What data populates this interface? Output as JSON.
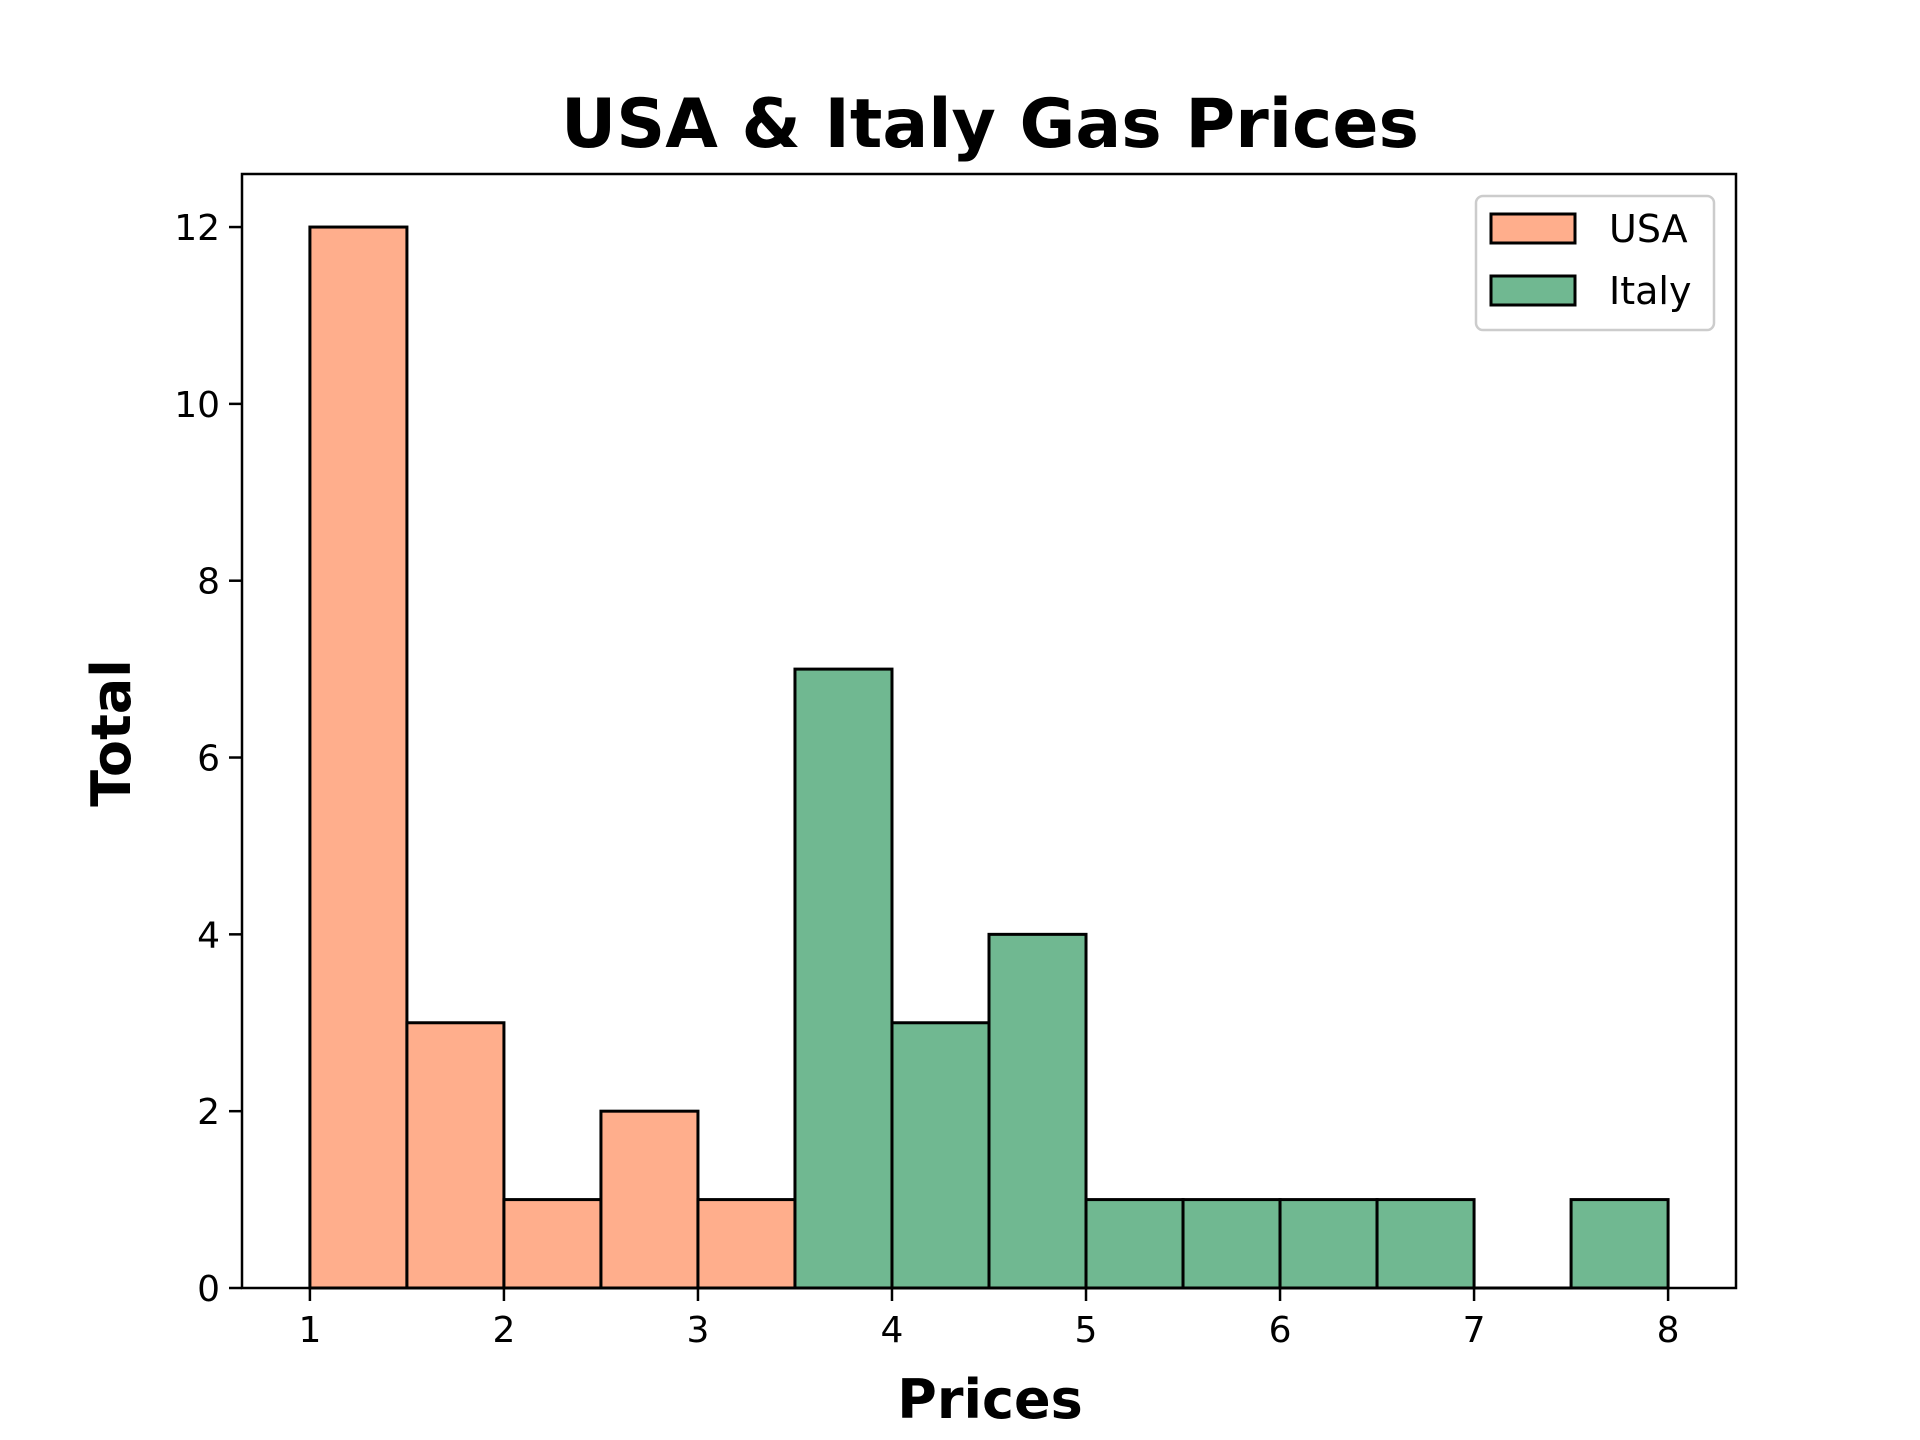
{
  "chart_data": {
    "type": "bar",
    "subtype": "histogram",
    "title": "USA & Italy Gas Prices",
    "xlabel": "Prices",
    "ylabel": "Total",
    "xlim": [
      0.65,
      8.35
    ],
    "ylim": [
      0,
      12.6
    ],
    "xticks": [
      1,
      2,
      3,
      4,
      5,
      6,
      7,
      8
    ],
    "yticks": [
      0,
      2,
      4,
      6,
      8,
      10,
      12
    ],
    "grid": false,
    "legend": {
      "position": "top-right"
    },
    "bin_width": 0.5,
    "series": [
      {
        "name": "USA",
        "color": "#ffae8c",
        "bins": [
          {
            "x0": 1.0,
            "x1": 1.5,
            "count": 12
          },
          {
            "x0": 1.5,
            "x1": 2.0,
            "count": 3
          },
          {
            "x0": 2.0,
            "x1": 2.5,
            "count": 1
          },
          {
            "x0": 2.5,
            "x1": 3.0,
            "count": 2
          },
          {
            "x0": 3.0,
            "x1": 3.5,
            "count": 1
          }
        ]
      },
      {
        "name": "Italy",
        "color": "#70b891",
        "bins": [
          {
            "x0": 3.5,
            "x1": 4.0,
            "count": 7
          },
          {
            "x0": 4.0,
            "x1": 4.5,
            "count": 3
          },
          {
            "x0": 4.5,
            "x1": 5.0,
            "count": 4
          },
          {
            "x0": 5.0,
            "x1": 5.5,
            "count": 1
          },
          {
            "x0": 5.5,
            "x1": 6.0,
            "count": 1
          },
          {
            "x0": 6.0,
            "x1": 6.5,
            "count": 1
          },
          {
            "x0": 6.5,
            "x1": 7.0,
            "count": 1
          },
          {
            "x0": 7.0,
            "x1": 7.5,
            "count": 0
          },
          {
            "x0": 7.5,
            "x1": 8.0,
            "count": 1
          }
        ]
      }
    ]
  }
}
